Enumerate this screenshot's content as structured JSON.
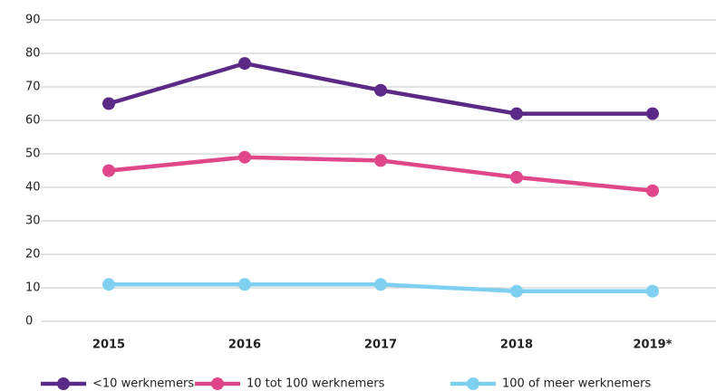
{
  "chart_data": {
    "type": "line",
    "categories": [
      "2015",
      "2016",
      "2017",
      "2018",
      "2019*"
    ],
    "series": [
      {
        "name": "<10 werknemers",
        "color": "#5b2a86",
        "values": [
          65,
          77,
          69,
          62,
          62
        ]
      },
      {
        "name": "10 tot 100 werknemers",
        "color": "#e0478a",
        "values": [
          45,
          49,
          48,
          43,
          39
        ]
      },
      {
        "name": "100 of meer werknemers",
        "color": "#7fd0f0",
        "values": [
          11,
          11,
          11,
          9,
          9
        ]
      }
    ],
    "ylim": [
      0,
      90
    ],
    "yticks": [
      0,
      10,
      20,
      30,
      40,
      50,
      60,
      70,
      80,
      90
    ],
    "grid": true,
    "legend": "bottom"
  }
}
